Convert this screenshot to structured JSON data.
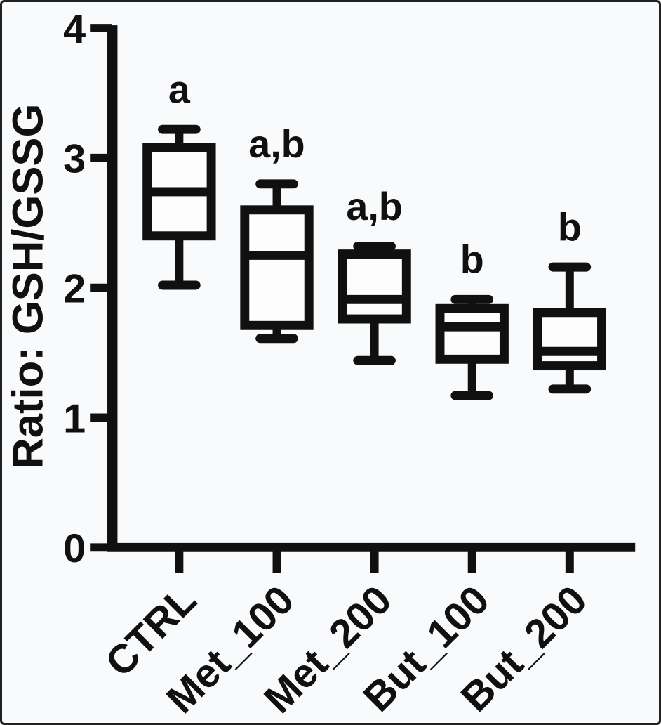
{
  "figure": {
    "background": "#f9fafb",
    "ink": "#101010",
    "border_color": "#212121",
    "box_fill": "#fdfdfe"
  },
  "chart_data": {
    "type": "boxplot",
    "title": "",
    "xlabel": "",
    "ylabel": "Ratio: GSH/GSSG",
    "ylim": [
      0,
      4
    ],
    "yticks": [
      0,
      1,
      2,
      3,
      4
    ],
    "grid": false,
    "legend": false,
    "categories": [
      "CTRL",
      "Met_100",
      "Met_200",
      "But_100",
      "But_200"
    ],
    "boxes": [
      {
        "category": "CTRL",
        "letter": "a",
        "min": 2.02,
        "q1": 2.4,
        "median": 2.74,
        "q3": 3.08,
        "max": 3.22
      },
      {
        "category": "Met_100",
        "letter": "a,b",
        "min": 1.61,
        "q1": 1.71,
        "median": 2.25,
        "q3": 2.6,
        "max": 2.8
      },
      {
        "category": "Met_200",
        "letter": "a,b",
        "min": 1.44,
        "q1": 1.76,
        "median": 1.91,
        "q3": 2.26,
        "max": 2.32
      },
      {
        "category": "But_100",
        "letter": "b",
        "min": 1.17,
        "q1": 1.45,
        "median": 1.7,
        "q3": 1.84,
        "max": 1.91
      },
      {
        "category": "But_200",
        "letter": "b",
        "min": 1.22,
        "q1": 1.4,
        "median": 1.51,
        "q3": 1.81,
        "max": 2.16
      }
    ]
  }
}
